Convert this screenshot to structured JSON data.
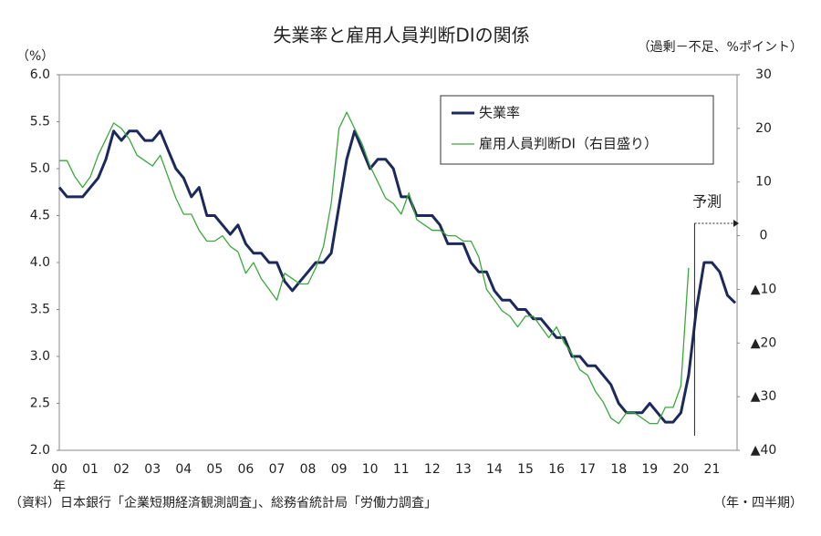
{
  "chart_data": {
    "type": "line",
    "title": "失業率と雇用人員判断DIの関係",
    "y_label": "（%）",
    "y2_label": "（過剰－不足、%ポイント）",
    "x_unit": "年",
    "x_label": "（年・四半期）",
    "source": "（資料）日本銀行「企業短期経済観測調査」、総務省統計局「労働力調査」",
    "annotation": "予測",
    "annotation_index": 82,
    "legend": "upper-right",
    "grid": false,
    "categories": [
      "00",
      null,
      null,
      null,
      "01",
      null,
      null,
      null,
      "02",
      null,
      null,
      null,
      "03",
      null,
      null,
      null,
      "04",
      null,
      null,
      null,
      "05",
      null,
      null,
      null,
      "06",
      null,
      null,
      null,
      "07",
      null,
      null,
      null,
      "08",
      null,
      null,
      null,
      "09",
      null,
      null,
      null,
      "10",
      null,
      null,
      null,
      "11",
      null,
      null,
      null,
      "12",
      null,
      null,
      null,
      "13",
      null,
      null,
      null,
      "14",
      null,
      null,
      null,
      "15",
      null,
      null,
      null,
      "16",
      null,
      null,
      null,
      "17",
      null,
      null,
      null,
      "18",
      null,
      null,
      null,
      "19",
      null,
      null,
      null,
      "20",
      null,
      null,
      null,
      "21",
      null,
      null,
      null
    ],
    "ylim": [
      2.0,
      6.0
    ],
    "yticks": [
      {
        "value": 2.0,
        "label": "2.0"
      },
      2.5,
      {
        "value": 3.0,
        "label": "3.0"
      },
      3.5,
      {
        "value": 4.0,
        "label": "4.0"
      },
      4.5,
      {
        "value": 5.0,
        "label": "5.0"
      },
      5.5,
      {
        "value": 6.0,
        "label": "6.0"
      }
    ],
    "y2lim": [
      -40,
      30
    ],
    "y2ticks": [
      {
        "value": -40,
        "label": "▲40"
      },
      {
        "value": -30,
        "label": "▲30"
      },
      {
        "value": -20,
        "label": "▲20"
      },
      {
        "value": -10,
        "label": "▲10"
      },
      0,
      10,
      20,
      30
    ],
    "series": [
      {
        "name": "失業率",
        "color": "#1b2a5a",
        "width": 3,
        "values": [
          4.8,
          4.7,
          4.7,
          4.7,
          4.8,
          4.9,
          5.1,
          5.4,
          5.3,
          5.4,
          5.4,
          5.3,
          5.3,
          5.4,
          5.2,
          5.0,
          4.9,
          4.7,
          4.8,
          4.5,
          4.5,
          4.4,
          4.3,
          4.4,
          4.2,
          4.1,
          4.1,
          4.0,
          4.0,
          3.8,
          3.7,
          3.8,
          3.9,
          4.0,
          4.0,
          4.1,
          4.6,
          5.1,
          5.4,
          5.2,
          5.0,
          5.1,
          5.1,
          5.0,
          4.7,
          4.7,
          4.5,
          4.5,
          4.5,
          4.4,
          4.2,
          4.2,
          4.2,
          4.0,
          3.9,
          3.9,
          3.7,
          3.6,
          3.6,
          3.5,
          3.5,
          3.4,
          3.4,
          3.3,
          3.2,
          3.2,
          3.0,
          3.0,
          2.9,
          2.9,
          2.8,
          2.7,
          2.5,
          2.4,
          2.4,
          2.4,
          2.5,
          2.4,
          2.3,
          2.3,
          2.4,
          2.8,
          3.5,
          4.0,
          4.0,
          3.9,
          3.65,
          3.57
        ]
      },
      {
        "name": "雇用人員判断DI（右目盛り）",
        "color": "#3aa83a",
        "width": 1.3,
        "axis": "y2",
        "values": [
          14,
          14,
          11,
          9,
          11,
          15,
          18,
          21,
          20,
          18,
          15,
          14,
          13,
          15,
          11,
          7,
          4,
          4,
          1,
          -1,
          -1,
          0,
          -2,
          -3,
          -7,
          -5,
          -8,
          -10,
          -12,
          -7,
          -8,
          -9,
          -9,
          -6,
          -2,
          6,
          20,
          23,
          20,
          17,
          13,
          10,
          7,
          6,
          4,
          8,
          3,
          2,
          1,
          1,
          0,
          0,
          -1,
          -1,
          -4,
          -10,
          -12,
          -14,
          -15,
          -17,
          -15,
          -15,
          -17,
          -19,
          -17,
          -20,
          -22,
          -25,
          -26,
          -29,
          -31,
          -34,
          -35,
          -33,
          -33,
          -34,
          -35,
          -35,
          -32,
          -32,
          -28,
          -6,
          null,
          null,
          null,
          null,
          null,
          null
        ]
      }
    ]
  }
}
